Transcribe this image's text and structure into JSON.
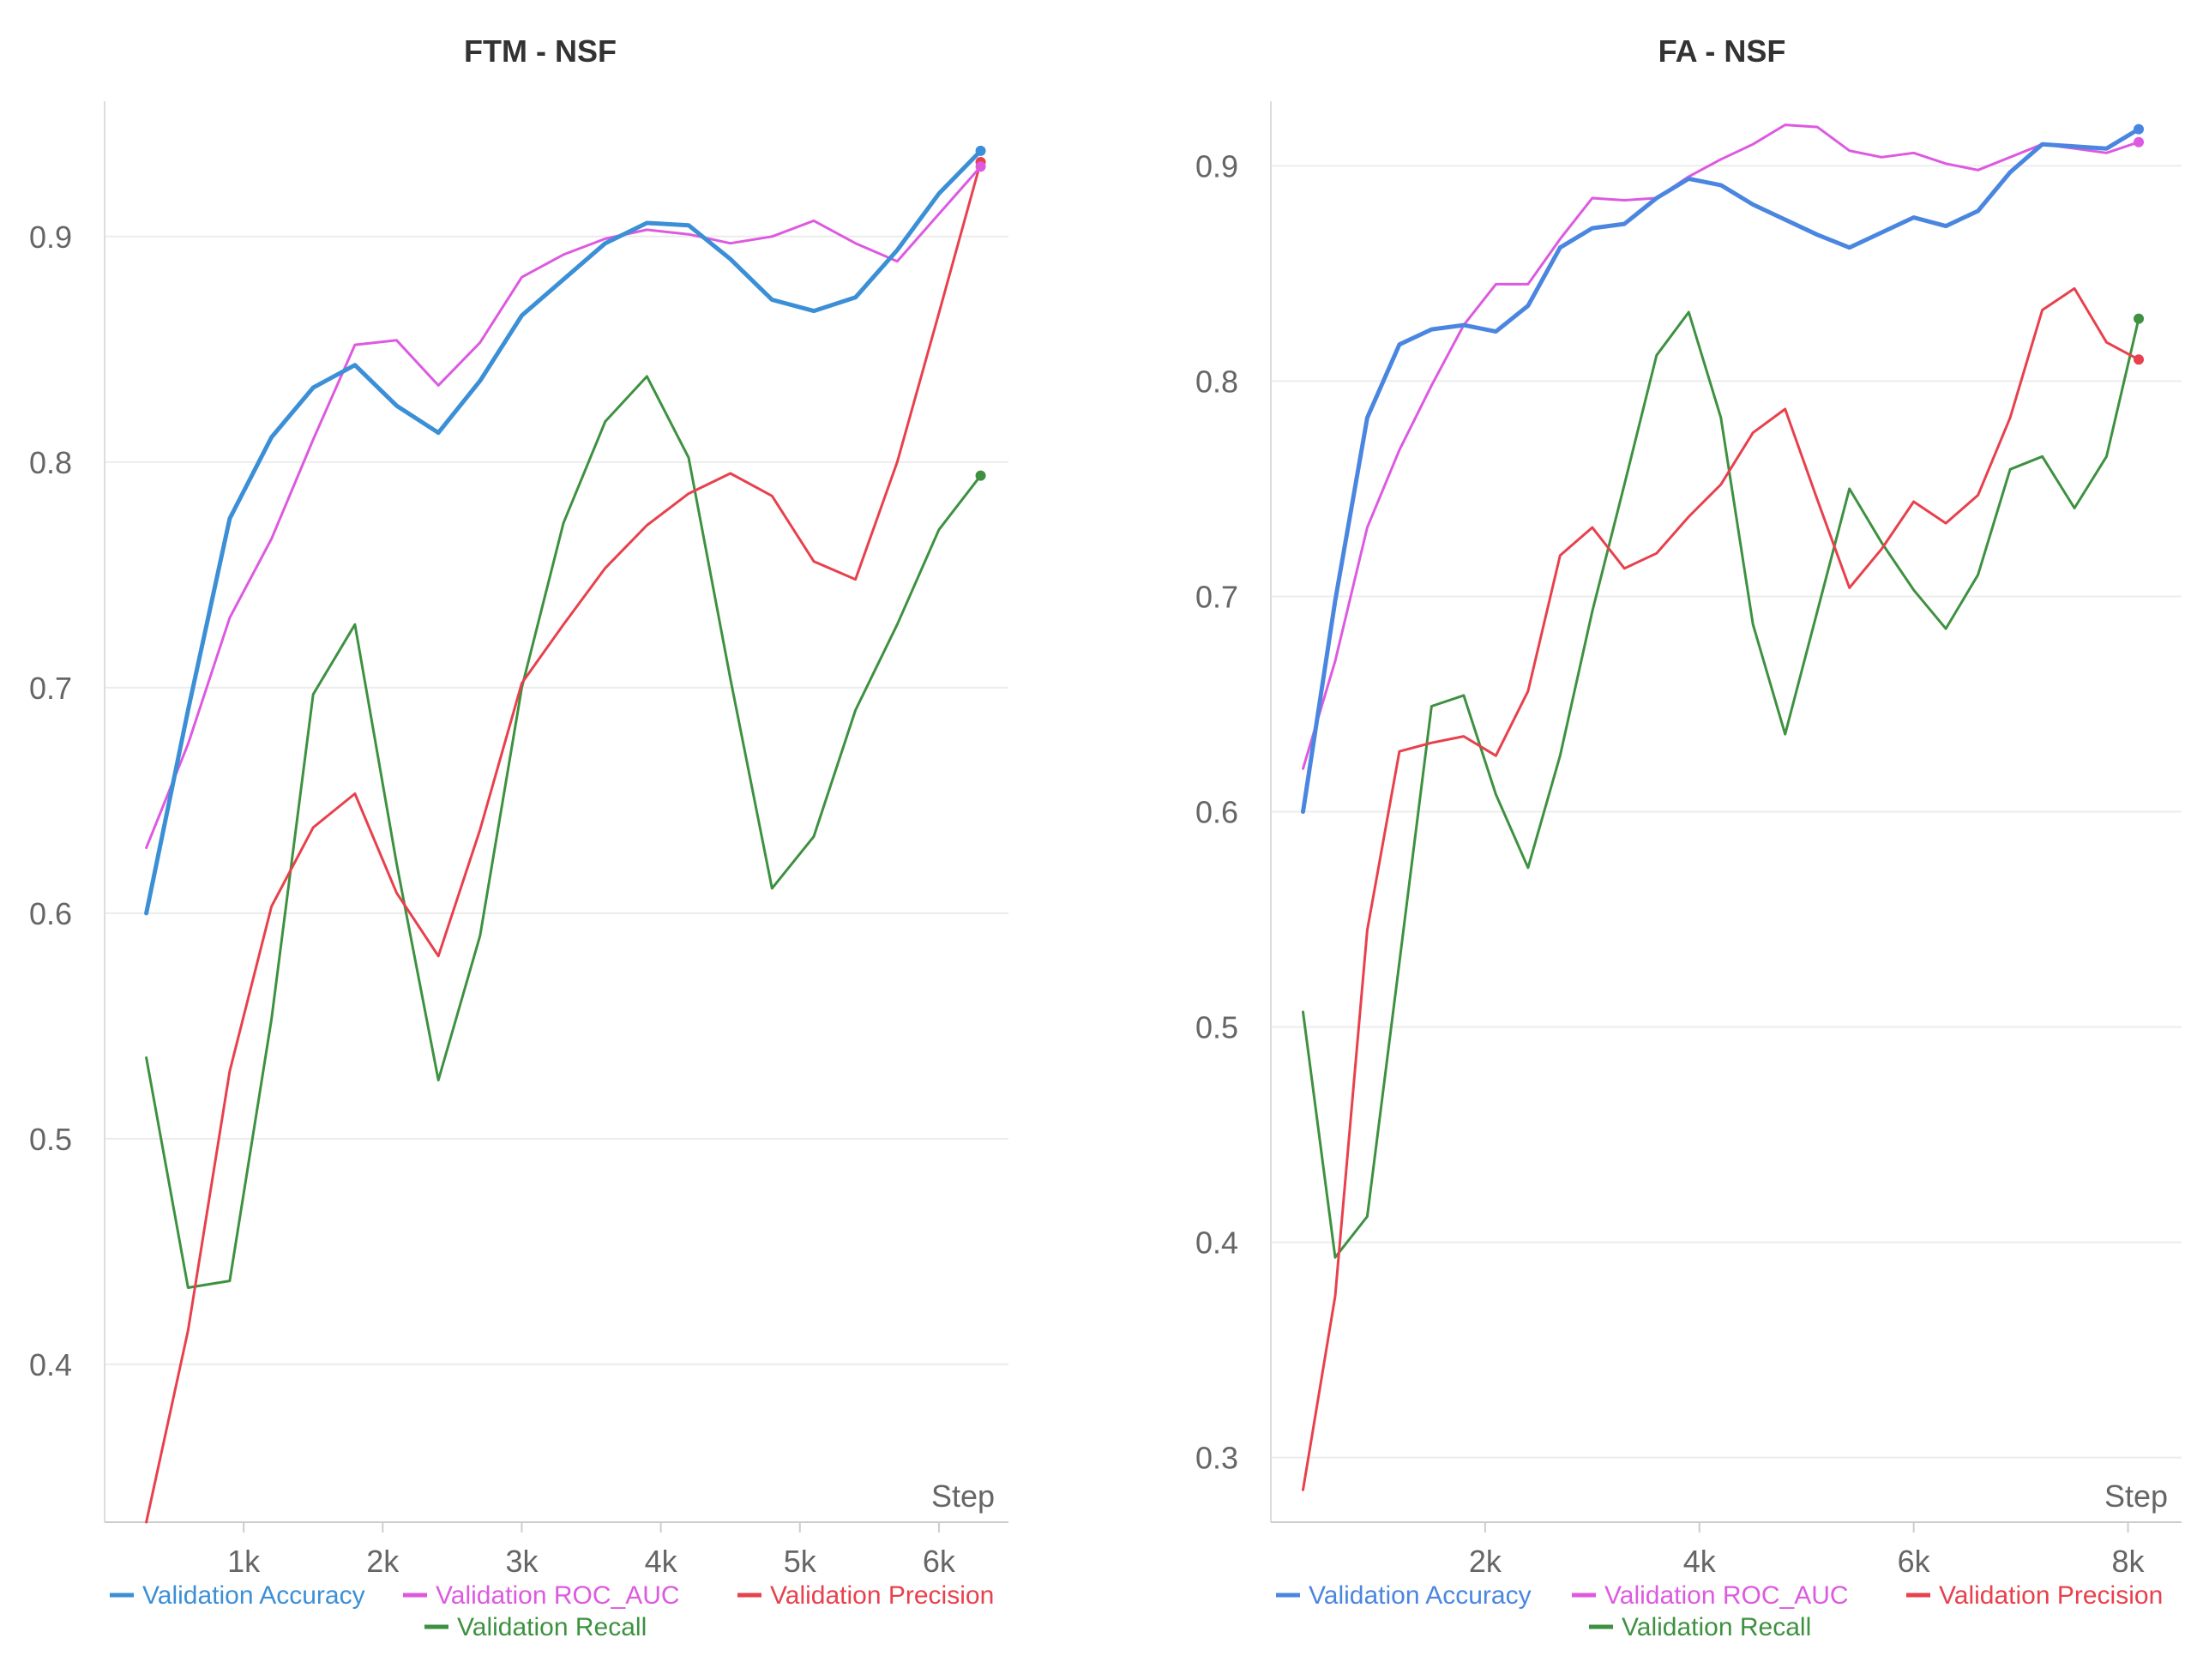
{
  "chart_data": [
    {
      "type": "line",
      "title": "FTM - NSF",
      "xlabel": "Step",
      "ylabel": "",
      "xlim": [
        0,
        6500
      ],
      "ylim": [
        0.33,
        0.96
      ],
      "xticks": [
        1000,
        2000,
        3000,
        4000,
        5000,
        6000
      ],
      "xtick_labels": [
        "1k",
        "2k",
        "3k",
        "4k",
        "5k",
        "6k"
      ],
      "yticks": [
        0.4,
        0.5,
        0.6,
        0.7,
        0.8,
        0.9
      ],
      "ytick_labels": [
        "0.4",
        "0.5",
        "0.6",
        "0.7",
        "0.8",
        "0.9"
      ],
      "grid": true,
      "legend_position": "bottom",
      "x": [
        300,
        600,
        900,
        1200,
        1500,
        1800,
        2100,
        2400,
        2700,
        3000,
        3300,
        3600,
        3900,
        4200,
        4500,
        4800,
        5100,
        5400,
        5700,
        6000,
        6300
      ],
      "series": [
        {
          "name": "Validation Accuracy",
          "color": "#3b8fd6",
          "width": 5,
          "values": [
            0.6,
            0.69,
            0.775,
            0.811,
            0.833,
            0.843,
            0.825,
            0.813,
            0.836,
            0.865,
            0.881,
            0.897,
            0.906,
            0.905,
            0.89,
            0.872,
            0.867,
            0.873,
            0.894,
            0.919,
            0.938
          ]
        },
        {
          "name": "Validation ROC_AUC",
          "color": "#dd5ae0",
          "width": 3,
          "values": [
            0.629,
            0.675,
            0.731,
            0.766,
            0.81,
            0.852,
            0.854,
            0.834,
            0.853,
            0.882,
            0.892,
            0.899,
            0.903,
            0.901,
            0.897,
            0.9,
            0.907,
            0.897,
            0.889,
            0.91,
            0.931
          ]
        },
        {
          "name": "Validation Precision",
          "color": "#e8404c",
          "width": 3,
          "values": [
            0.33,
            0.415,
            0.53,
            0.603,
            0.638,
            0.653,
            0.609,
            0.581,
            0.637,
            0.702,
            0.728,
            0.753,
            0.772,
            0.786,
            0.795,
            0.785,
            0.756,
            0.748,
            0.8,
            0.866,
            0.933
          ]
        },
        {
          "name": "Validation Recall",
          "color": "#3d9140",
          "width": 3,
          "values": [
            0.536,
            0.434,
            0.437,
            0.553,
            0.697,
            0.728,
            0.622,
            0.526,
            0.59,
            0.7,
            0.773,
            0.818,
            0.838,
            0.802,
            0.704,
            0.611,
            0.634,
            0.69,
            0.728,
            0.77,
            0.794
          ]
        }
      ]
    },
    {
      "type": "line",
      "title": "FA - NSF",
      "xlabel": "Step",
      "ylabel": "",
      "xlim": [
        0,
        8500
      ],
      "ylim": [
        0.27,
        0.93
      ],
      "xticks": [
        2000,
        4000,
        6000,
        8000
      ],
      "xtick_labels": [
        "2k",
        "4k",
        "6k",
        "8k"
      ],
      "yticks": [
        0.3,
        0.4,
        0.5,
        0.6,
        0.7,
        0.8,
        0.9
      ],
      "ytick_labels": [
        "0.3",
        "0.4",
        "0.5",
        "0.6",
        "0.7",
        "0.8",
        "0.9"
      ],
      "grid": true,
      "legend_position": "bottom",
      "x": [
        300,
        600,
        900,
        1200,
        1500,
        1800,
        2100,
        2400,
        2700,
        3000,
        3300,
        3600,
        3900,
        4200,
        4500,
        4800,
        5100,
        5400,
        5700,
        6000,
        6300,
        6600,
        6900,
        7200,
        7500,
        7800,
        8100
      ],
      "series": [
        {
          "name": "Validation Accuracy",
          "color": "#4a86e0",
          "width": 5,
          "values": [
            0.6,
            0.698,
            0.783,
            0.817,
            0.824,
            0.826,
            0.823,
            0.835,
            0.862,
            0.871,
            0.873,
            0.885,
            0.894,
            0.891,
            0.882,
            0.875,
            0.868,
            0.862,
            0.869,
            0.876,
            0.872,
            0.879,
            0.897,
            0.91,
            0.909,
            0.908,
            0.917
          ]
        },
        {
          "name": "Validation ROC_AUC",
          "color": "#dd5ae0",
          "width": 3,
          "values": [
            0.62,
            0.67,
            0.732,
            0.768,
            0.798,
            0.826,
            0.845,
            0.845,
            0.866,
            0.885,
            0.884,
            0.885,
            0.895,
            0.903,
            0.91,
            0.919,
            0.918,
            0.907,
            0.904,
            0.906,
            0.901,
            0.898,
            0.904,
            0.91,
            0.908,
            0.906,
            0.911
          ]
        },
        {
          "name": "Validation Precision",
          "color": "#e8404c",
          "width": 3,
          "values": [
            0.285,
            0.375,
            0.545,
            0.628,
            0.632,
            0.635,
            0.626,
            0.656,
            0.719,
            0.732,
            0.713,
            0.72,
            0.737,
            0.752,
            0.776,
            0.787,
            0.745,
            0.704,
            0.722,
            0.744,
            0.734,
            0.747,
            0.783,
            0.833,
            0.843,
            0.818,
            0.81
          ]
        },
        {
          "name": "Validation Recall",
          "color": "#3d9140",
          "width": 3,
          "values": [
            0.507,
            0.393,
            0.412,
            0.53,
            0.649,
            0.654,
            0.608,
            0.574,
            0.626,
            0.693,
            0.752,
            0.812,
            0.832,
            0.783,
            0.687,
            0.636,
            0.693,
            0.75,
            0.725,
            0.703,
            0.685,
            0.71,
            0.759,
            0.765,
            0.741,
            0.765,
            0.829
          ]
        }
      ]
    }
  ]
}
